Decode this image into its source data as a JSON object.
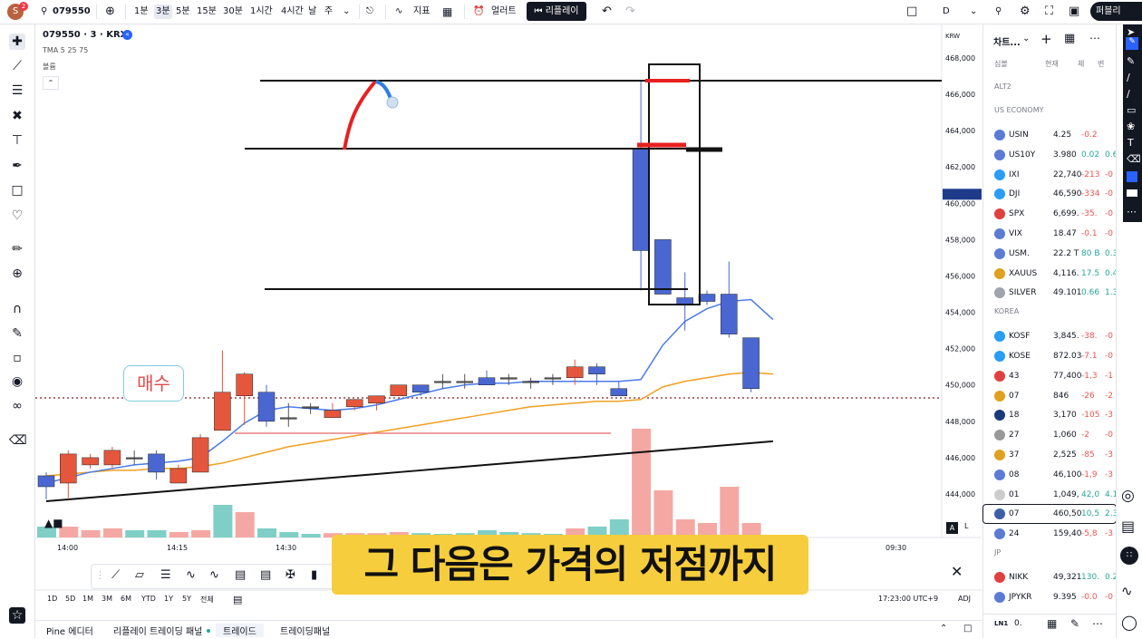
{
  "topbar": {
    "symbol": "079550",
    "avatar_letter": "S",
    "avatar_badge": "2",
    "intervals": [
      "1분",
      "3분",
      "5분",
      "15분",
      "30분",
      "1시간",
      "4시간",
      "날",
      "주"
    ],
    "active_interval": "3분",
    "indicators_label": "지표",
    "alert_label": "얼러트",
    "replay_label": "리플레이",
    "layout_label": "D",
    "publish_label": "퍼블리"
  },
  "chart": {
    "title": "079550 · 3 · KRX",
    "indicator_legend": "TMA 5 25 75",
    "volume_label": "볼륨",
    "currency": "KRW",
    "buy_label": "매수",
    "time_labels": [
      "14:00",
      "14:15",
      "14:30",
      "09:30"
    ],
    "price_labels": [
      "468,000",
      "466,000",
      "464,000",
      "462,000",
      "460,000",
      "458,000",
      "456,000",
      "454,000",
      "452,000",
      "450,000",
      "448,000",
      "446,000",
      "444,000"
    ],
    "axis_mode_a": "A",
    "axis_mode_l": "L",
    "candles": [
      {
        "o": 444.4,
        "h": 445.2,
        "l": 443.7,
        "c": 445.0,
        "color": "blue"
      },
      {
        "o": 444.6,
        "h": 446.4,
        "l": 443.7,
        "c": 446.2,
        "color": "red"
      },
      {
        "o": 445.6,
        "h": 446.2,
        "l": 445.4,
        "c": 446.0,
        "color": "red"
      },
      {
        "o": 445.6,
        "h": 446.6,
        "l": 445.4,
        "c": 446.4,
        "color": "red"
      },
      {
        "o": 446.0,
        "h": 446.4,
        "l": 445.6,
        "c": 446.0,
        "color": "doji"
      },
      {
        "o": 446.2,
        "h": 446.4,
        "l": 444.8,
        "c": 445.2,
        "color": "blue"
      },
      {
        "o": 444.6,
        "h": 445.6,
        "l": 444.6,
        "c": 445.4,
        "color": "red"
      },
      {
        "o": 445.2,
        "h": 447.3,
        "l": 445.2,
        "c": 447.1,
        "color": "red"
      },
      {
        "o": 447.5,
        "h": 451.9,
        "l": 447.5,
        "c": 449.6,
        "color": "red"
      },
      {
        "o": 449.4,
        "h": 450.7,
        "l": 447.8,
        "c": 450.6,
        "color": "red"
      },
      {
        "o": 449.6,
        "h": 450.0,
        "l": 447.7,
        "c": 448.0,
        "color": "blue"
      },
      {
        "o": 448.2,
        "h": 449.0,
        "l": 447.7,
        "c": 448.2,
        "color": "doji"
      },
      {
        "o": 448.8,
        "h": 449.0,
        "l": 448.4,
        "c": 448.8,
        "color": "doji"
      },
      {
        "o": 448.2,
        "h": 449.0,
        "l": 448.2,
        "c": 448.6,
        "color": "red"
      },
      {
        "o": 448.8,
        "h": 449.2,
        "l": 448.6,
        "c": 449.2,
        "color": "red"
      },
      {
        "o": 449.0,
        "h": 449.4,
        "l": 448.6,
        "c": 449.4,
        "color": "red"
      },
      {
        "o": 449.4,
        "h": 450.0,
        "l": 449.4,
        "c": 450.0,
        "color": "red"
      },
      {
        "o": 450.0,
        "h": 450.0,
        "l": 449.4,
        "c": 449.6,
        "color": "blue"
      },
      {
        "o": 450.2,
        "h": 450.6,
        "l": 449.8,
        "c": 450.2,
        "color": "doji"
      },
      {
        "o": 450.2,
        "h": 450.6,
        "l": 449.8,
        "c": 450.2,
        "color": "doji"
      },
      {
        "o": 450.4,
        "h": 450.8,
        "l": 450.0,
        "c": 450.0,
        "color": "blue"
      },
      {
        "o": 450.4,
        "h": 450.6,
        "l": 450.0,
        "c": 450.4,
        "color": "doji"
      },
      {
        "o": 450.2,
        "h": 450.4,
        "l": 449.8,
        "c": 450.2,
        "color": "doji"
      },
      {
        "o": 450.4,
        "h": 450.6,
        "l": 450.0,
        "c": 450.4,
        "color": "doji"
      },
      {
        "o": 450.4,
        "h": 451.4,
        "l": 450.0,
        "c": 451.0,
        "color": "red"
      },
      {
        "o": 451.0,
        "h": 451.2,
        "l": 450.0,
        "c": 450.6,
        "color": "blue"
      },
      {
        "o": 449.8,
        "h": 450.2,
        "l": 449.4,
        "c": 449.4,
        "color": "blue"
      },
      {
        "o": 463.0,
        "h": 466.8,
        "l": 455.2,
        "c": 457.4,
        "color": "blue"
      },
      {
        "o": 458.0,
        "h": 458.0,
        "l": 455.0,
        "c": 455.0,
        "color": "blue"
      },
      {
        "o": 454.8,
        "h": 456.2,
        "l": 453.0,
        "c": 454.4,
        "color": "blue"
      },
      {
        "o": 455.0,
        "h": 455.2,
        "l": 454.4,
        "c": 454.6,
        "color": "blue"
      },
      {
        "o": 455.0,
        "h": 456.8,
        "l": 452.6,
        "c": 452.8,
        "color": "blue"
      },
      {
        "o": 452.6,
        "h": 452.6,
        "l": 449.6,
        "c": 449.8,
        "color": "blue"
      }
    ],
    "volumes": [
      {
        "v": 0.3,
        "color": "teal"
      },
      {
        "v": 0.3,
        "color": "pink"
      },
      {
        "v": 0.2,
        "color": "pink"
      },
      {
        "v": 0.25,
        "color": "pink"
      },
      {
        "v": 0.2,
        "color": "teal"
      },
      {
        "v": 0.2,
        "color": "teal"
      },
      {
        "v": 0.15,
        "color": "pink"
      },
      {
        "v": 0.2,
        "color": "pink"
      },
      {
        "v": 0.9,
        "color": "teal"
      },
      {
        "v": 0.7,
        "color": "pink"
      },
      {
        "v": 0.25,
        "color": "teal"
      },
      {
        "v": 0.15,
        "color": "teal"
      },
      {
        "v": 0.1,
        "color": "teal"
      },
      {
        "v": 0.12,
        "color": "pink"
      },
      {
        "v": 0.12,
        "color": "pink"
      },
      {
        "v": 0.12,
        "color": "pink"
      },
      {
        "v": 0.15,
        "color": "pink"
      },
      {
        "v": 0.12,
        "color": "teal"
      },
      {
        "v": 0.1,
        "color": "teal"
      },
      {
        "v": 0.12,
        "color": "teal"
      },
      {
        "v": 0.2,
        "color": "teal"
      },
      {
        "v": 0.15,
        "color": "teal"
      },
      {
        "v": 0.12,
        "color": "teal"
      },
      {
        "v": 0.1,
        "color": "teal"
      },
      {
        "v": 0.25,
        "color": "pink"
      },
      {
        "v": 0.3,
        "color": "teal"
      },
      {
        "v": 0.5,
        "color": "teal"
      },
      {
        "v": 3.0,
        "color": "pink"
      },
      {
        "v": 1.3,
        "color": "pink"
      },
      {
        "v": 0.5,
        "color": "pink"
      },
      {
        "v": 0.4,
        "color": "pink"
      },
      {
        "v": 1.4,
        "color": "pink"
      },
      {
        "v": 0.4,
        "color": "pink"
      }
    ],
    "ma_fast": [
      444.6,
      444.9,
      445.2,
      445.4,
      445.6,
      445.7,
      445.8,
      446.0,
      446.9,
      447.9,
      448.6,
      448.8,
      448.7,
      448.6,
      448.7,
      448.9,
      449.2,
      449.5,
      449.8,
      450.0,
      450.1,
      450.1,
      450.2,
      450.2,
      450.2,
      450.2,
      450.2,
      450.3,
      452.2,
      453.5,
      454.2,
      454.6,
      454.7,
      453.6
    ],
    "ma_mid": [
      445.0,
      445.1,
      445.2,
      445.3,
      445.3,
      445.4,
      445.4,
      445.5,
      445.7,
      446.0,
      446.3,
      446.6,
      446.8,
      447.0,
      447.2,
      447.4,
      447.6,
      447.8,
      448.0,
      448.2,
      448.4,
      448.6,
      448.8,
      448.9,
      449.0,
      449.1,
      449.1,
      449.2,
      449.9,
      450.2,
      450.4,
      450.6,
      450.7,
      450.6
    ],
    "ma_slow": [
      443.6,
      443.7,
      443.8,
      443.9,
      444.0,
      444.1,
      444.2,
      444.3,
      444.4,
      444.5,
      444.6,
      444.7,
      444.8,
      444.9,
      445.0,
      445.1,
      445.2,
      445.3,
      445.4,
      445.5,
      445.6,
      445.7,
      445.8,
      445.9,
      446.0,
      446.1,
      446.2,
      446.3,
      446.4,
      446.5,
      446.6,
      446.7,
      446.8,
      446.9
    ],
    "ranges": [
      "1D",
      "5D",
      "1M",
      "3M",
      "6M",
      "YTD",
      "1Y",
      "5Y",
      "전체"
    ],
    "clock": "17:23:00 UTC+9",
    "adj_label": "ADJ"
  },
  "subtitle": "그 다음은 가격의 저점까지",
  "bottom_tabs": [
    "Pine 에디터",
    "리플레이 트레이딩 패널",
    "트레이드",
    "트레이딩패널"
  ],
  "watchlist": {
    "title": "차트...",
    "headers": [
      "심볼",
      "현재",
      "체",
      "변"
    ],
    "sections": [
      {
        "name": "ALT2",
        "rows": []
      },
      {
        "name": "US ECONOMY",
        "rows": [
          {
            "sym": "USIN",
            "last": "4.25",
            "chg": "-0.2",
            "pct": "",
            "icon": "#5b7bd5"
          },
          {
            "sym": "US10Y",
            "last": "3.980",
            "chg": "0.02",
            "pct": "0.6",
            "icon": "#5b7bd5"
          },
          {
            "sym": "IXI",
            "last": "22,740",
            "chg": "-213",
            "pct": "-0",
            "icon": "#2a9df4"
          },
          {
            "sym": "DJI",
            "last": "46,590",
            "chg": "-334",
            "pct": "-0",
            "icon": "#2a9df4"
          },
          {
            "sym": "SPX",
            "last": "6,699.",
            "chg": "-35.",
            "pct": "-0",
            "icon": "#e04040"
          },
          {
            "sym": "VIX",
            "last": "18.47",
            "chg": "-0.1",
            "pct": "-0",
            "icon": "#5b7bd5"
          },
          {
            "sym": "USM.",
            "last": "22.2 T",
            "chg": "80 B",
            "pct": "0.3",
            "icon": "#5b7bd5"
          },
          {
            "sym": "XAUUS",
            "last": "4,116.",
            "chg": "17.5",
            "pct": "0.4",
            "icon": "#e0a020"
          },
          {
            "sym": "SILVER",
            "last": "49.101",
            "chg": "0.66",
            "pct": "1.3",
            "icon": "#a0a4ab"
          }
        ]
      },
      {
        "name": "KOREA",
        "rows": [
          {
            "sym": "KOSF",
            "last": "3,845.",
            "chg": "-38.",
            "pct": "-0",
            "icon": "#2a9df4"
          },
          {
            "sym": "KOSE",
            "last": "872.03",
            "chg": "-7.1",
            "pct": "-0",
            "icon": "#2a9df4"
          },
          {
            "sym": "43",
            "last": "77,400",
            "chg": "-1,3",
            "pct": "-1",
            "icon": "#e04040"
          },
          {
            "sym": "07",
            "last": "846",
            "chg": "-26",
            "pct": "-2",
            "icon": "#e0a020"
          },
          {
            "sym": "18",
            "last": "3,170",
            "chg": "-105",
            "pct": "-3",
            "icon": "#1b3a7a"
          },
          {
            "sym": "27",
            "last": "1,060",
            "chg": "-2",
            "pct": "-0",
            "icon": "#999999"
          },
          {
            "sym": "37",
            "last": "2,525",
            "chg": "-85",
            "pct": "-3",
            "icon": "#e0a020"
          },
          {
            "sym": "08",
            "last": "46,100",
            "chg": "-1,9",
            "pct": "-3",
            "icon": "#5b7bd5"
          },
          {
            "sym": "01",
            "last": "1,049,",
            "chg": "42,0",
            "pct": "4.1",
            "icon": "#cccccc"
          },
          {
            "sym": "07",
            "last": "460,50",
            "chg": "10,5",
            "pct": "2.3",
            "icon": "#3d5fa8"
          },
          {
            "sym": "24",
            "last": "159,40",
            "chg": "-5,8",
            "pct": "-3",
            "icon": "#5b7bd5"
          }
        ]
      },
      {
        "name": "JP",
        "rows": [
          {
            "sym": "NIKK",
            "last": "49,321",
            "chg": "130.",
            "pct": "0.2",
            "icon": "#e04040"
          },
          {
            "sym": "JPYKR",
            "last": "9.395",
            "chg": "-0.0",
            "pct": "-0",
            "icon": "#5b7bd5"
          }
        ]
      }
    ],
    "footer_symbol": "0."
  },
  "colors": {
    "up": "#e4573d",
    "down": "#4a67d1",
    "vol_up": "#f5a8a3",
    "vol_down": "#7fcfc6",
    "ma_fast": "#4a7be8",
    "ma_mid": "#f0a020",
    "ma_slow": "#111111",
    "positive": "#26a69a",
    "negative": "#ef5350",
    "subtitle_bg": "#f6cd3c"
  }
}
